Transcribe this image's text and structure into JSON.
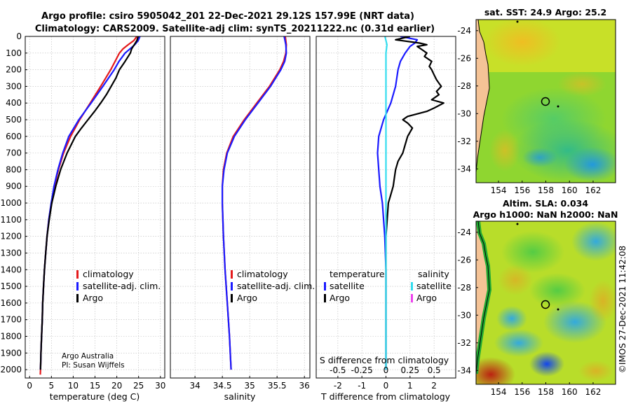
{
  "title": {
    "line1": "Argo profile: csiro 5905042_201 22-Dec-2021 29.12S 157.99E (NRT data)",
    "line2": "Climatology: CARS2009. Satellite-adj clim: synTS_20211222.nc (0.31d earlier)"
  },
  "credit": {
    "line1": "Argo Australia",
    "line2": "PI: Susan Wijffels"
  },
  "watermark": "©IMOS 27-Dec-2021 11:42:08",
  "colors": {
    "climatology": "#e41a1c",
    "satellite": "#1a1aff",
    "argo": "#000000",
    "sat_salinity": "#33ddee",
    "argo_salinity": "#ee44ee",
    "land": "#f5c396",
    "coast": "#33bb33"
  },
  "chart_data": [
    {
      "type": "line",
      "name": "temperature",
      "xlabel": "temperature (deg C)",
      "xlim": [
        -1,
        31
      ],
      "ylim": [
        2050,
        0
      ],
      "xticks": [
        0,
        5,
        10,
        15,
        20,
        25,
        30
      ],
      "xtick_labels": [
        "0",
        "5",
        "10",
        "15",
        "20",
        "25",
        "30"
      ],
      "yticks": [
        0,
        100,
        200,
        300,
        400,
        500,
        600,
        700,
        800,
        900,
        1000,
        1100,
        1200,
        1300,
        1400,
        1500,
        1600,
        1700,
        1800,
        1900,
        2000
      ],
      "ytick_labels": [
        "0",
        "100",
        "200",
        "300",
        "400",
        "500",
        "600",
        "700",
        "800",
        "900",
        "1000",
        "1100",
        "1200",
        "1300",
        "1400",
        "1500",
        "1600",
        "1700",
        "1800",
        "1900",
        "2000"
      ],
      "legend": [
        "climatology",
        "satellite-adj. clim.",
        "Argo"
      ],
      "series": [
        {
          "name": "climatology",
          "color": "#e41a1c",
          "depth": [
            0,
            25,
            50,
            75,
            100,
            150,
            200,
            300,
            400,
            500,
            600,
            700,
            800,
            900,
            1000,
            1100,
            1200,
            1300,
            1400,
            1500,
            1600,
            1700,
            1800,
            1900,
            2000,
            2030
          ],
          "values": [
            24.6,
            23.9,
            22.6,
            21.4,
            20.6,
            19.6,
            18.6,
            16.3,
            13.9,
            11.5,
            9.4,
            7.8,
            6.6,
            5.7,
            5.0,
            4.4,
            4.0,
            3.7,
            3.4,
            3.2,
            3.0,
            2.9,
            2.75,
            2.6,
            2.5,
            2.45
          ]
        },
        {
          "name": "satellite-adj. clim.",
          "color": "#1a1aff",
          "depth": [
            0,
            25,
            50,
            75,
            100,
            150,
            200,
            300,
            400,
            500,
            600,
            700,
            800,
            900,
            1000,
            1100,
            1200,
            1300,
            1400,
            1500,
            1600,
            1700,
            1800,
            1900,
            2000
          ],
          "values": [
            25.3,
            24.9,
            24.1,
            23.0,
            21.9,
            20.5,
            19.4,
            16.8,
            14.1,
            11.3,
            9.0,
            7.6,
            6.5,
            5.6,
            4.95,
            4.4,
            4.0,
            3.7,
            3.4,
            3.2,
            3.0,
            2.9,
            2.75,
            2.6,
            2.5
          ]
        },
        {
          "name": "Argo",
          "color": "#000000",
          "depth": [
            0,
            25,
            50,
            75,
            100,
            125,
            150,
            200,
            250,
            300,
            350,
            400,
            450,
            500,
            550,
            600,
            700,
            800,
            900,
            1000,
            1100,
            1200,
            1300,
            1400,
            1500,
            1600,
            1700,
            1800,
            1900,
            2000
          ],
          "values": [
            24.9,
            24.6,
            24.0,
            23.4,
            23.1,
            22.5,
            21.9,
            20.6,
            19.8,
            18.7,
            17.6,
            16.3,
            14.9,
            13.4,
            11.9,
            10.5,
            8.6,
            7.1,
            6.0,
            5.1,
            4.5,
            4.0,
            3.7,
            3.4,
            3.2,
            3.0,
            2.9,
            2.75,
            2.6,
            2.5
          ]
        }
      ]
    },
    {
      "type": "line",
      "name": "salinity",
      "xlabel": "salinity",
      "xlim": [
        33.55,
        36.1
      ],
      "ylim": [
        2050,
        0
      ],
      "xticks": [
        34,
        34.5,
        35,
        35.5,
        36
      ],
      "xtick_labels": [
        "34",
        "34.5",
        "35",
        "35.5",
        "36"
      ],
      "legend": [
        "climatology",
        "satellite-adj. clim.",
        "Argo"
      ],
      "series": [
        {
          "name": "climatology",
          "color": "#e41a1c",
          "depth": [
            0,
            50,
            100,
            150,
            200,
            300,
            400,
            500,
            600,
            700,
            800,
            900,
            1000,
            1200,
            1400,
            1600,
            1800,
            2000
          ],
          "values": [
            35.65,
            35.67,
            35.66,
            35.62,
            35.55,
            35.36,
            35.13,
            34.9,
            34.7,
            34.58,
            34.52,
            34.5,
            34.5,
            34.52,
            34.55,
            34.59,
            34.63,
            34.66
          ]
        },
        {
          "name": "satellite-adj. clim.",
          "color": "#1a1aff",
          "depth": [
            0,
            50,
            100,
            150,
            200,
            300,
            400,
            500,
            600,
            700,
            800,
            900,
            1000,
            1200,
            1400,
            1600,
            1800,
            2000
          ],
          "values": [
            35.63,
            35.66,
            35.67,
            35.64,
            35.57,
            35.38,
            35.15,
            34.92,
            34.72,
            34.59,
            34.53,
            34.5,
            34.5,
            34.52,
            34.55,
            34.59,
            34.63,
            34.66
          ]
        }
      ]
    },
    {
      "type": "line",
      "name": "difference",
      "xlabel": "T difference from climatology",
      "x2label": "S difference from climatology",
      "xlim": [
        -2.9,
        2.9
      ],
      "ylim": [
        2050,
        0
      ],
      "xticks": [
        -2,
        -1,
        0,
        1,
        2
      ],
      "xtick_labels": [
        "-2",
        "-1",
        "0",
        "1",
        "2"
      ],
      "x2ticks": [
        -0.5,
        -0.25,
        0,
        0.25,
        0.5
      ],
      "x2tick_labels": [
        "-0.5",
        "-0.25",
        "0",
        "0.25",
        "0.5"
      ],
      "legend_left_title": "temperature",
      "legend_right_title": "salinity",
      "legend_left": [
        "satellite",
        "Argo"
      ],
      "legend_right": [
        "satellite",
        "Argo"
      ],
      "series": [
        {
          "name": "T satellite",
          "color": "#1a1aff",
          "depth": [
            0,
            20,
            40,
            60,
            80,
            100,
            150,
            200,
            300,
            400,
            500,
            600,
            700,
            800,
            900,
            1000,
            1200,
            1400,
            1600,
            1800,
            2000
          ],
          "values": [
            0.6,
            1.3,
            1.2,
            1.0,
            0.9,
            0.8,
            0.6,
            0.5,
            0.4,
            0.2,
            -0.1,
            -0.3,
            -0.35,
            -0.3,
            -0.25,
            -0.15,
            -0.05,
            0.0,
            0.0,
            0.0,
            0.0
          ]
        },
        {
          "name": "T Argo",
          "color": "#000000",
          "depth": [
            0,
            20,
            40,
            50,
            60,
            80,
            100,
            120,
            150,
            180,
            200,
            230,
            260,
            280,
            300,
            330,
            350,
            380,
            400,
            430,
            450,
            480,
            500,
            520,
            550,
            600,
            650,
            700,
            750,
            800,
            850,
            900,
            950,
            1000,
            1100,
            1200,
            1300,
            1400,
            1500,
            1600,
            1700,
            1800,
            1900,
            2000
          ],
          "values": [
            1.0,
            0.4,
            1.4,
            1.7,
            1.3,
            1.5,
            1.7,
            1.6,
            1.9,
            1.8,
            1.9,
            2.0,
            2.1,
            2.2,
            2.3,
            2.1,
            2.2,
            1.9,
            2.4,
            2.0,
            1.7,
            0.9,
            0.7,
            0.9,
            1.1,
            0.9,
            0.8,
            0.7,
            0.5,
            0.4,
            0.35,
            0.3,
            0.2,
            0.1,
            0.05,
            0.0,
            0.0,
            0.0,
            0.0,
            0.0,
            0.0,
            0.0,
            0.0,
            0.0
          ]
        },
        {
          "name": "S satellite",
          "color": "#33ddee",
          "depth": [
            0,
            50,
            100,
            200,
            400,
            600,
            800,
            1000,
            1500,
            2000
          ],
          "values": [
            -0.01,
            0.01,
            0.0,
            0.0,
            0.0,
            0.0,
            0.0,
            0.0,
            0.0,
            0.0
          ]
        }
      ]
    },
    {
      "type": "heatmap",
      "name": "sst-map",
      "title": "sat. SST: 24.9 Argo: 25.2",
      "xticks": [
        154,
        156,
        158,
        160,
        162
      ],
      "xtick_labels": [
        "154",
        "156",
        "158",
        "160",
        "162"
      ],
      "yticks": [
        -24,
        -26,
        -28,
        -30,
        -32,
        -34
      ],
      "ytick_labels": [
        "-24",
        "-26",
        "-28",
        "-30",
        "-32",
        "-34"
      ],
      "xlim": [
        152.1,
        163.9
      ],
      "ylim": [
        -35.0,
        -23.2
      ],
      "profile_location": [
        157.99,
        -29.12
      ]
    },
    {
      "type": "heatmap",
      "name": "sla-map",
      "title_line1": "Altim. SLA: 0.034",
      "title_line2": "Argo h1000: NaN h2000: NaN",
      "xticks": [
        154,
        156,
        158,
        160,
        162
      ],
      "xtick_labels": [
        "154",
        "156",
        "158",
        "160",
        "162"
      ],
      "yticks": [
        -24,
        -26,
        -28,
        -30,
        -32,
        -34
      ],
      "ytick_labels": [
        "-24",
        "-26",
        "-28",
        "-30",
        "-32",
        "-34"
      ],
      "xlim": [
        152.1,
        163.9
      ],
      "ylim": [
        -35.0,
        -23.2
      ],
      "profile_location": [
        157.99,
        -29.12
      ]
    }
  ]
}
